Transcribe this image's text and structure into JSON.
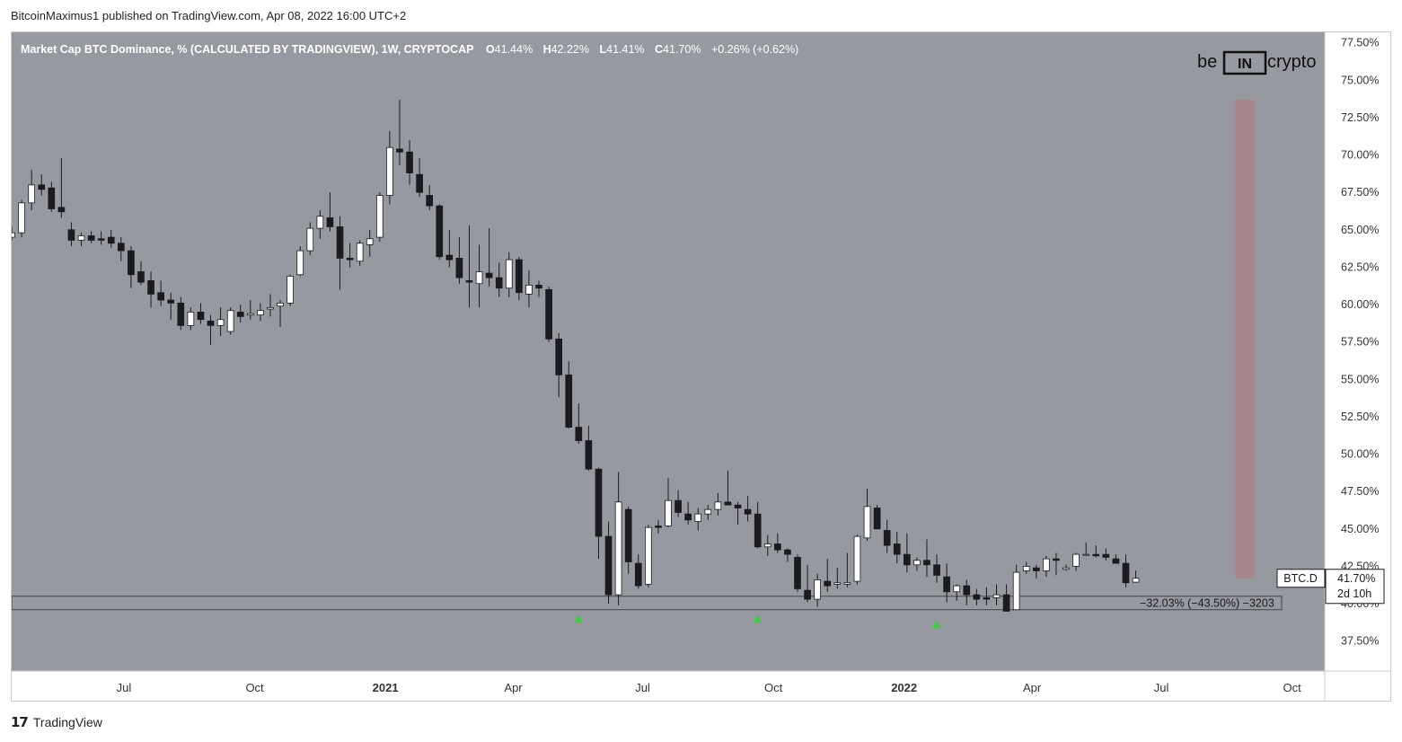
{
  "header": {
    "publish_line": "BitcoinMaximus1 published on TradingView.com, Apr 08, 2022 16:00 UTC+2"
  },
  "legend": {
    "title": "Market Cap BTC Dominance, % (CALCULATED BY TRADINGVIEW), 1W, CRYPTOCAP",
    "o_key": "O",
    "o_val": "41.44%",
    "h_key": "H",
    "h_val": "42.22%",
    "l_key": "L",
    "l_val": "41.41%",
    "c_key": "C",
    "c_val": "41.70%",
    "change": "+0.26% (+0.62%)"
  },
  "watermark": {
    "left": "be",
    "mid": "IN",
    "right": "crypto"
  },
  "price_label": {
    "symbol": "BTC.D",
    "value": "41.70%",
    "countdown": "2d 10h"
  },
  "measure_label": "−32.03% (−43.50%) −3203",
  "footer": {
    "logo_glyph": "17",
    "brand": "TradingView"
  },
  "colors": {
    "background": "#9799a1",
    "up_body": "#ffffff",
    "down_body": "#1b1b1f",
    "wick": "#1b1b1f",
    "arrow": "#3ccf3c",
    "resistance_zone": "#a8878d",
    "support_line": "#444444"
  },
  "chart_data": {
    "type": "candlestick",
    "title": "Market Cap BTC Dominance, % (CALCULATED BY TRADINGVIEW), 1W, CRYPTOCAP",
    "interval": "1W",
    "y_axis": {
      "position": "right",
      "ylim": [
        35.5,
        78.2
      ],
      "ticks": [
        "77.50%",
        "75.00%",
        "72.50%",
        "70.00%",
        "67.50%",
        "65.00%",
        "62.50%",
        "60.00%",
        "57.50%",
        "55.00%",
        "52.50%",
        "50.00%",
        "47.50%",
        "45.00%",
        "42.50%",
        "40.00%",
        "37.50%"
      ],
      "tick_values": [
        77.5,
        75,
        72.5,
        70,
        67.5,
        65,
        62.5,
        60,
        57.5,
        55,
        52.5,
        50,
        47.5,
        45,
        42.5,
        40,
        37.5
      ]
    },
    "x_axis": {
      "range": [
        "2020-04-13",
        "2022-10-24"
      ],
      "ticks": [
        {
          "label": "Jul",
          "date": "2020-07-01",
          "bold": false
        },
        {
          "label": "Oct",
          "date": "2020-10-01",
          "bold": false
        },
        {
          "label": "2021",
          "date": "2021-01-01",
          "bold": true
        },
        {
          "label": "Apr",
          "date": "2021-04-01",
          "bold": false
        },
        {
          "label": "Jul",
          "date": "2021-07-01",
          "bold": false
        },
        {
          "label": "Oct",
          "date": "2021-10-01",
          "bold": false
        },
        {
          "label": "2022",
          "date": "2022-01-01",
          "bold": true
        },
        {
          "label": "Apr",
          "date": "2022-04-01",
          "bold": false
        },
        {
          "label": "Jul",
          "date": "2022-07-01",
          "bold": false
        },
        {
          "label": "Oct",
          "date": "2022-10-01",
          "bold": false
        }
      ]
    },
    "candles_start": "2020-04-13",
    "candles_interval_days": 7,
    "candles": [
      [
        64.5,
        65.2,
        64.3,
        64.8
      ],
      [
        64.8,
        67.0,
        64.5,
        66.8
      ],
      [
        66.8,
        69.0,
        66.3,
        68.0
      ],
      [
        68.0,
        68.7,
        67.3,
        67.7
      ],
      [
        67.8,
        68.2,
        66.2,
        66.4
      ],
      [
        66.5,
        69.8,
        65.8,
        66.2
      ],
      [
        65.0,
        65.5,
        63.9,
        64.3
      ],
      [
        64.3,
        64.8,
        63.9,
        64.6
      ],
      [
        64.6,
        64.9,
        64.1,
        64.3
      ],
      [
        64.4,
        64.9,
        64.0,
        64.3
      ],
      [
        64.5,
        65.0,
        63.8,
        64.1
      ],
      [
        64.1,
        64.5,
        62.9,
        63.6
      ],
      [
        63.6,
        63.9,
        61.1,
        62.0
      ],
      [
        62.2,
        62.9,
        61.3,
        61.5
      ],
      [
        61.6,
        62.2,
        59.8,
        60.7
      ],
      [
        60.8,
        61.6,
        59.9,
        60.3
      ],
      [
        60.3,
        60.8,
        59.0,
        60.1
      ],
      [
        60.1,
        60.5,
        58.3,
        58.6
      ],
      [
        58.6,
        59.8,
        58.3,
        59.5
      ],
      [
        59.5,
        60.1,
        58.7,
        59.0
      ],
      [
        58.9,
        59.3,
        57.3,
        58.6
      ],
      [
        58.6,
        59.8,
        57.9,
        59.0
      ],
      [
        58.2,
        59.8,
        58.0,
        59.6
      ],
      [
        59.5,
        60.0,
        58.8,
        59.2
      ],
      [
        59.3,
        60.3,
        59.0,
        59.4
      ],
      [
        59.3,
        60.1,
        58.9,
        59.6
      ],
      [
        59.7,
        60.7,
        59.2,
        59.8
      ],
      [
        59.9,
        60.3,
        58.5,
        60.1
      ],
      [
        60.1,
        62.0,
        59.9,
        61.9
      ],
      [
        62.0,
        63.9,
        61.9,
        63.6
      ],
      [
        63.6,
        65.5,
        63.3,
        65.1
      ],
      [
        65.1,
        66.3,
        64.4,
        65.9
      ],
      [
        65.8,
        67.5,
        64.9,
        65.2
      ],
      [
        65.2,
        65.9,
        61.0,
        63.1
      ],
      [
        63.1,
        64.1,
        62.5,
        63.0
      ],
      [
        62.9,
        64.3,
        62.6,
        64.1
      ],
      [
        64.0,
        65.0,
        63.2,
        64.4
      ],
      [
        64.5,
        67.5,
        64.2,
        67.3
      ],
      [
        67.3,
        71.6,
        66.7,
        70.5
      ],
      [
        70.4,
        73.7,
        69.3,
        70.2
      ],
      [
        70.2,
        71.0,
        68.0,
        68.8
      ],
      [
        68.7,
        69.8,
        67.2,
        67.5
      ],
      [
        67.3,
        68.0,
        66.3,
        66.6
      ],
      [
        66.6,
        66.7,
        63.0,
        63.2
      ],
      [
        63.3,
        65.0,
        62.5,
        63.0
      ],
      [
        63.1,
        64.5,
        61.4,
        61.8
      ],
      [
        61.6,
        65.3,
        59.8,
        61.5
      ],
      [
        61.4,
        64.0,
        59.8,
        62.2
      ],
      [
        62.1,
        65.1,
        61.2,
        61.8
      ],
      [
        61.8,
        62.8,
        60.5,
        61.1
      ],
      [
        61.1,
        63.5,
        60.5,
        63.0
      ],
      [
        63.0,
        63.2,
        60.3,
        60.8
      ],
      [
        60.7,
        62.3,
        59.8,
        61.3
      ],
      [
        61.3,
        61.6,
        60.5,
        61.1
      ],
      [
        61.0,
        61.2,
        57.5,
        57.7
      ],
      [
        57.7,
        58.1,
        53.8,
        55.3
      ],
      [
        55.3,
        56.2,
        51.7,
        51.8
      ],
      [
        51.8,
        53.4,
        50.7,
        50.9
      ],
      [
        50.9,
        51.9,
        48.9,
        49.0
      ],
      [
        49.0,
        49.1,
        43.0,
        44.5
      ],
      [
        44.5,
        45.5,
        40.0,
        40.6
      ],
      [
        40.6,
        48.8,
        39.9,
        46.8
      ],
      [
        46.3,
        46.5,
        42.0,
        42.8
      ],
      [
        42.7,
        43.3,
        41.0,
        41.2
      ],
      [
        41.3,
        45.3,
        41.1,
        45.1
      ],
      [
        45.2,
        45.6,
        44.7,
        45.1
      ],
      [
        45.2,
        48.4,
        45.1,
        46.9
      ],
      [
        46.9,
        47.6,
        45.8,
        46.1
      ],
      [
        46.0,
        46.8,
        45.3,
        45.6
      ],
      [
        45.5,
        46.4,
        44.9,
        46.0
      ],
      [
        46.0,
        46.6,
        45.6,
        46.3
      ],
      [
        46.3,
        47.4,
        45.9,
        46.8
      ],
      [
        46.8,
        48.9,
        46.6,
        46.6
      ],
      [
        46.6,
        46.8,
        45.3,
        46.4
      ],
      [
        46.3,
        47.2,
        45.5,
        46.0
      ],
      [
        46.0,
        46.8,
        43.7,
        43.8
      ],
      [
        43.8,
        44.6,
        43.2,
        44.0
      ],
      [
        44.0,
        44.7,
        43.4,
        43.6
      ],
      [
        43.6,
        43.7,
        42.8,
        43.3
      ],
      [
        43.1,
        43.3,
        40.8,
        41.0
      ],
      [
        40.9,
        42.6,
        40.1,
        40.3
      ],
      [
        40.3,
        42.0,
        39.8,
        41.6
      ],
      [
        41.5,
        43.0,
        40.8,
        41.2
      ],
      [
        41.3,
        42.4,
        41.0,
        41.4
      ],
      [
        41.3,
        43.4,
        41.1,
        41.4
      ],
      [
        41.5,
        44.6,
        41.3,
        44.5
      ],
      [
        44.4,
        47.7,
        44.2,
        46.5
      ],
      [
        46.4,
        46.6,
        45.0,
        45.0
      ],
      [
        44.9,
        45.6,
        43.4,
        43.9
      ],
      [
        44.0,
        44.8,
        42.7,
        43.3
      ],
      [
        43.3,
        44.7,
        42.1,
        42.6
      ],
      [
        42.6,
        43.1,
        42.2,
        42.9
      ],
      [
        42.9,
        44.3,
        41.8,
        42.6
      ],
      [
        42.6,
        43.3,
        41.4,
        41.9
      ],
      [
        41.8,
        42.7,
        40.1,
        40.8
      ],
      [
        40.8,
        41.3,
        40.2,
        41.2
      ],
      [
        41.2,
        41.6,
        39.9,
        40.6
      ],
      [
        40.6,
        41.0,
        39.9,
        40.3
      ],
      [
        40.4,
        41.1,
        39.9,
        40.3
      ],
      [
        40.4,
        41.3,
        39.9,
        40.6
      ],
      [
        40.6,
        41.3,
        39.5,
        39.5
      ],
      [
        39.6,
        42.6,
        39.6,
        42.1
      ],
      [
        42.2,
        42.8,
        42.0,
        42.5
      ],
      [
        42.4,
        42.6,
        41.7,
        42.2
      ],
      [
        42.2,
        43.2,
        41.8,
        43.0
      ],
      [
        43.0,
        43.4,
        41.9,
        42.9
      ],
      [
        42.3,
        42.6,
        42.2,
        42.4
      ],
      [
        42.5,
        43.4,
        42.2,
        43.3
      ],
      [
        43.3,
        44.1,
        43.2,
        43.3
      ],
      [
        43.3,
        43.9,
        43.1,
        43.2
      ],
      [
        43.3,
        43.7,
        42.9,
        43.1
      ],
      [
        43.0,
        43.3,
        42.8,
        42.7
      ],
      [
        42.7,
        43.3,
        41.1,
        41.4
      ],
      [
        41.44,
        42.22,
        41.41,
        41.7
      ]
    ],
    "support_zone": [
      39.6,
      40.5
    ],
    "resistance_bar": {
      "from": "2022-08-22",
      "to": "2022-09-05",
      "low": 41.7,
      "high": 73.7
    },
    "arrows": [
      {
        "date": "2021-05-17",
        "value": 39.0
      },
      {
        "date": "2021-09-20",
        "value": 39.0
      },
      {
        "date": "2022-01-24",
        "value": 38.6
      }
    ],
    "measure_value": "−32.03% (−43.50%) −3203",
    "last_value": 41.7
  }
}
